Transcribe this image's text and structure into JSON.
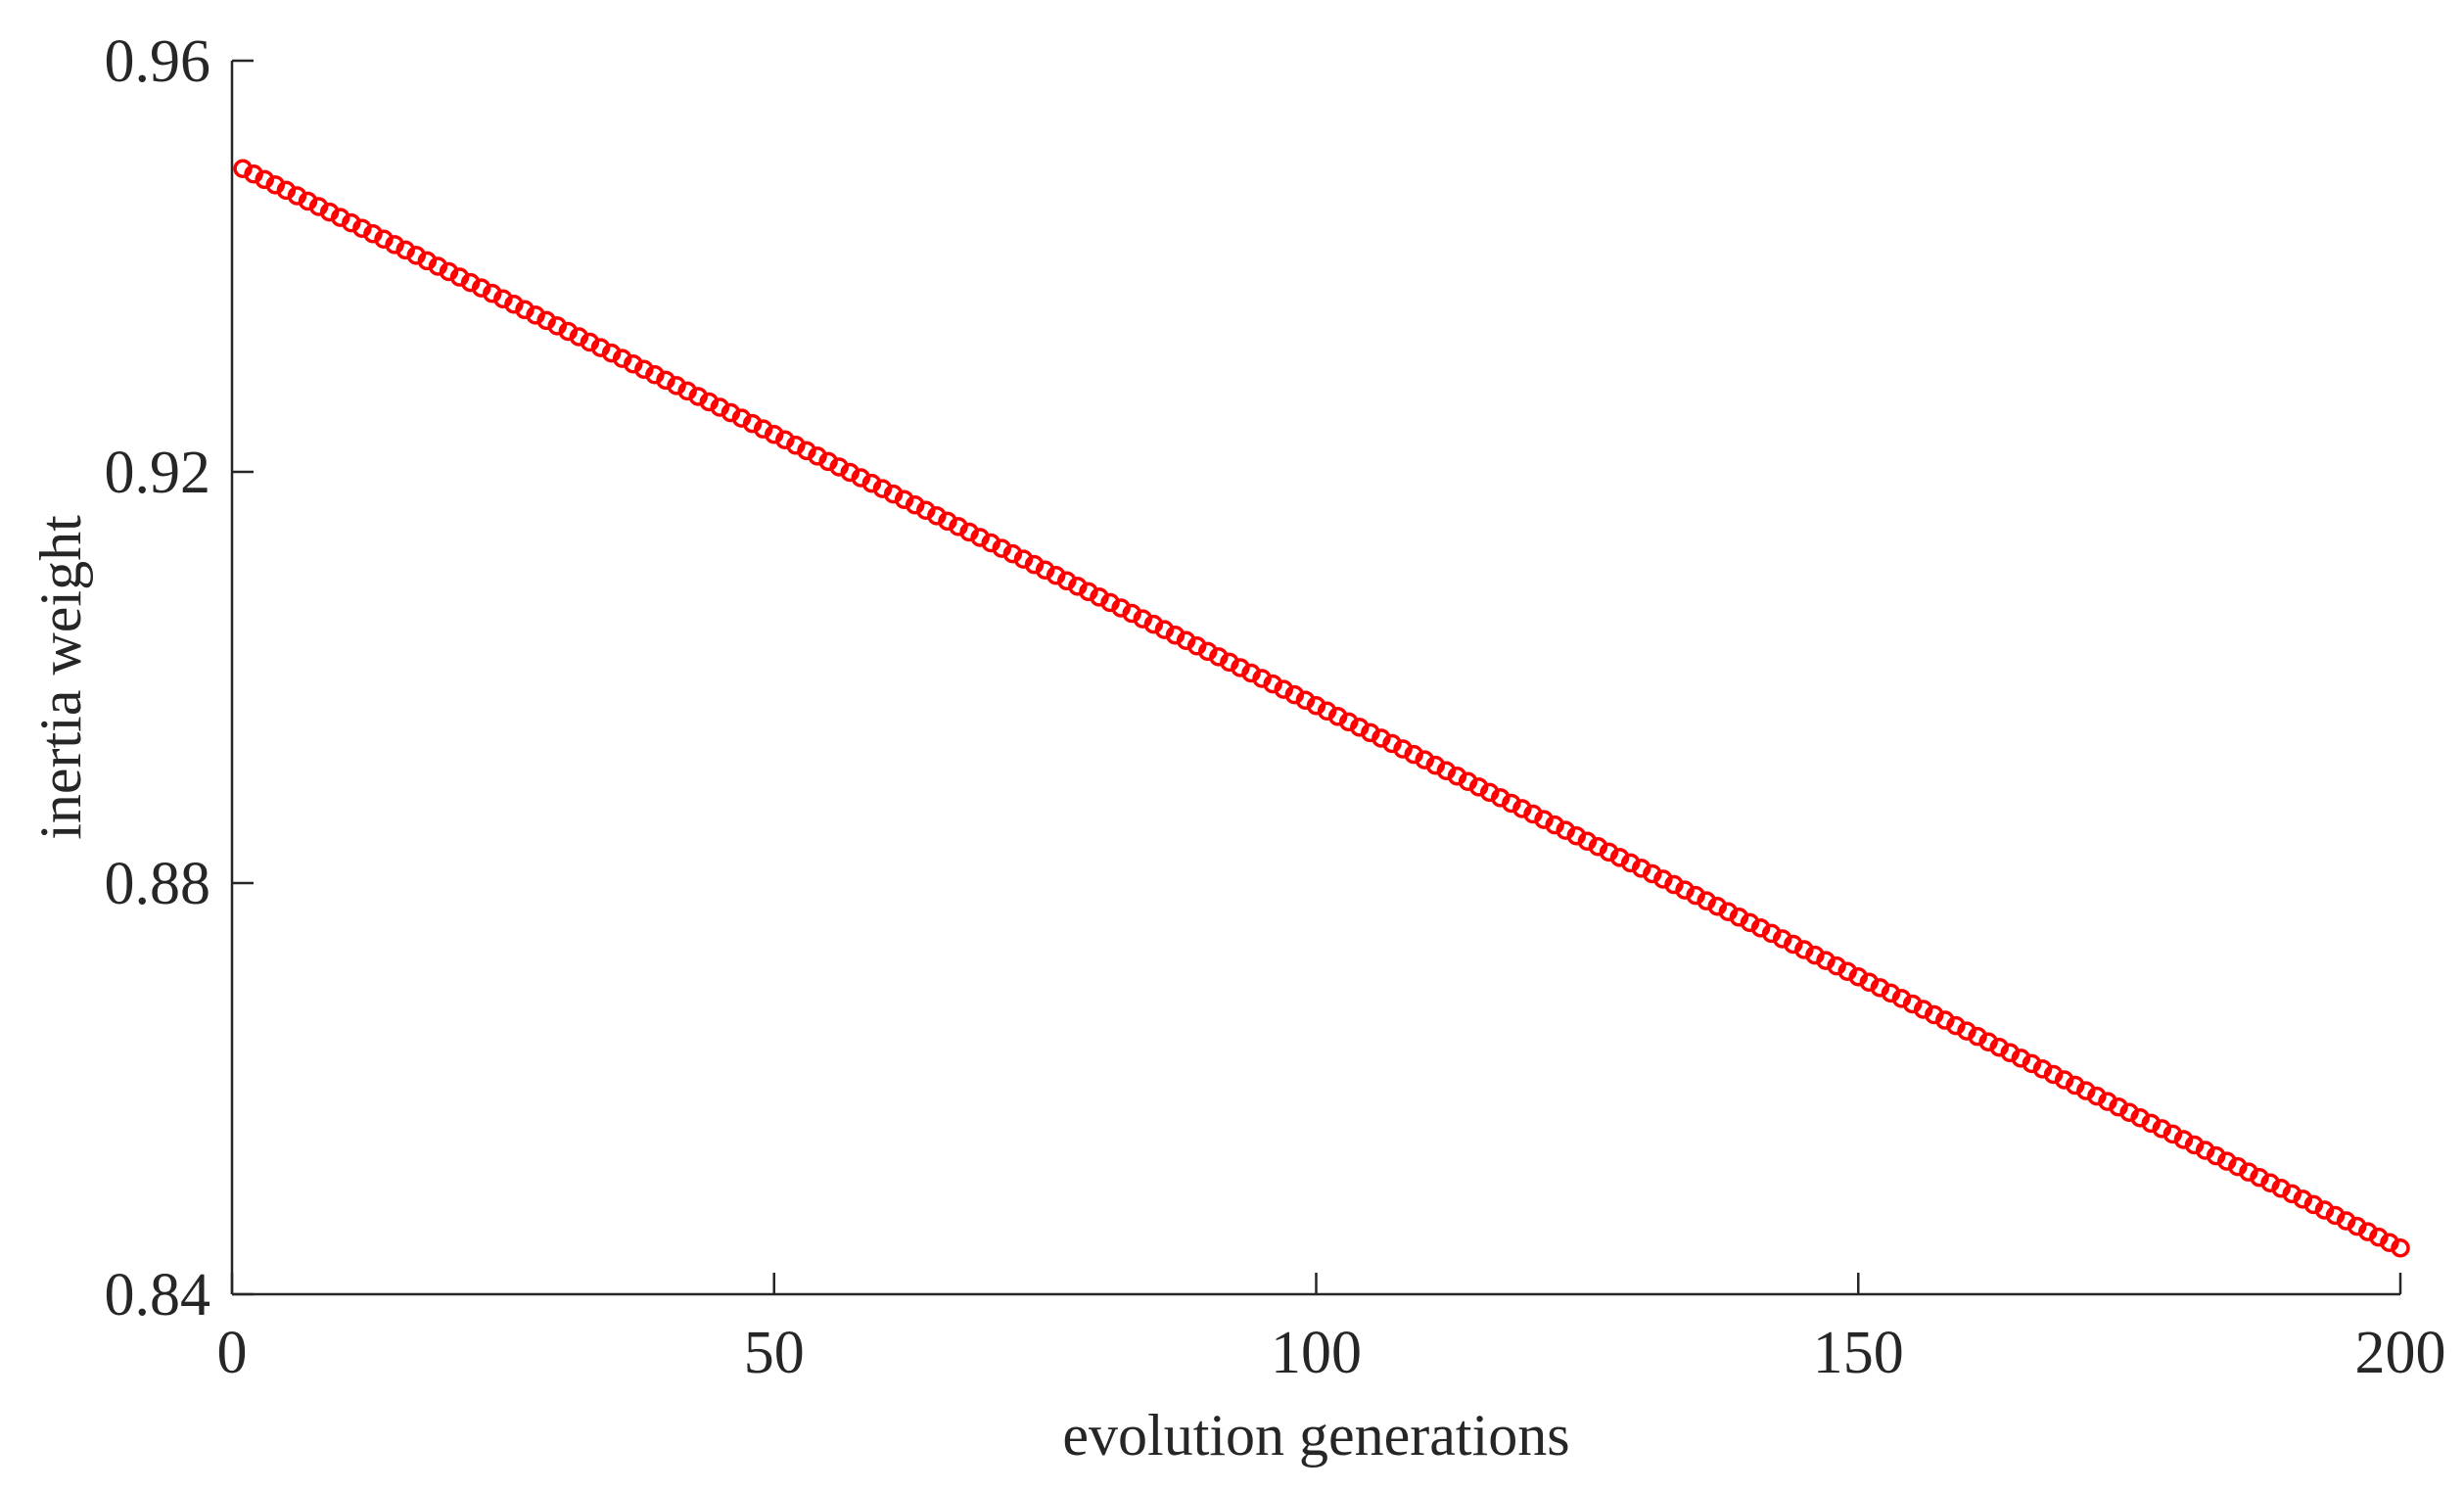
{
  "chart_data": {
    "type": "scatter",
    "title": "",
    "xlabel": "evolution generations",
    "ylabel": "inertia weight",
    "xlim": [
      0,
      200
    ],
    "ylim": [
      0.84,
      0.96
    ],
    "xticks": [
      0,
      50,
      100,
      150,
      200
    ],
    "xtick_labels": [
      "0",
      "50",
      "100",
      "150",
      "200"
    ],
    "yticks": [
      0.84,
      0.88,
      0.92,
      0.96
    ],
    "ytick_labels": [
      "0.84",
      "0.88",
      "0.92",
      "0.96"
    ],
    "grid": false,
    "marker": "circle-open",
    "series": [
      {
        "name": "inertia weight",
        "color": "#ff0000",
        "x_start": 1,
        "x_end": 200,
        "x_step": 1,
        "y_start": 0.9495,
        "y_end": 0.8445,
        "description_of_relation": "linear decrease"
      }
    ]
  }
}
